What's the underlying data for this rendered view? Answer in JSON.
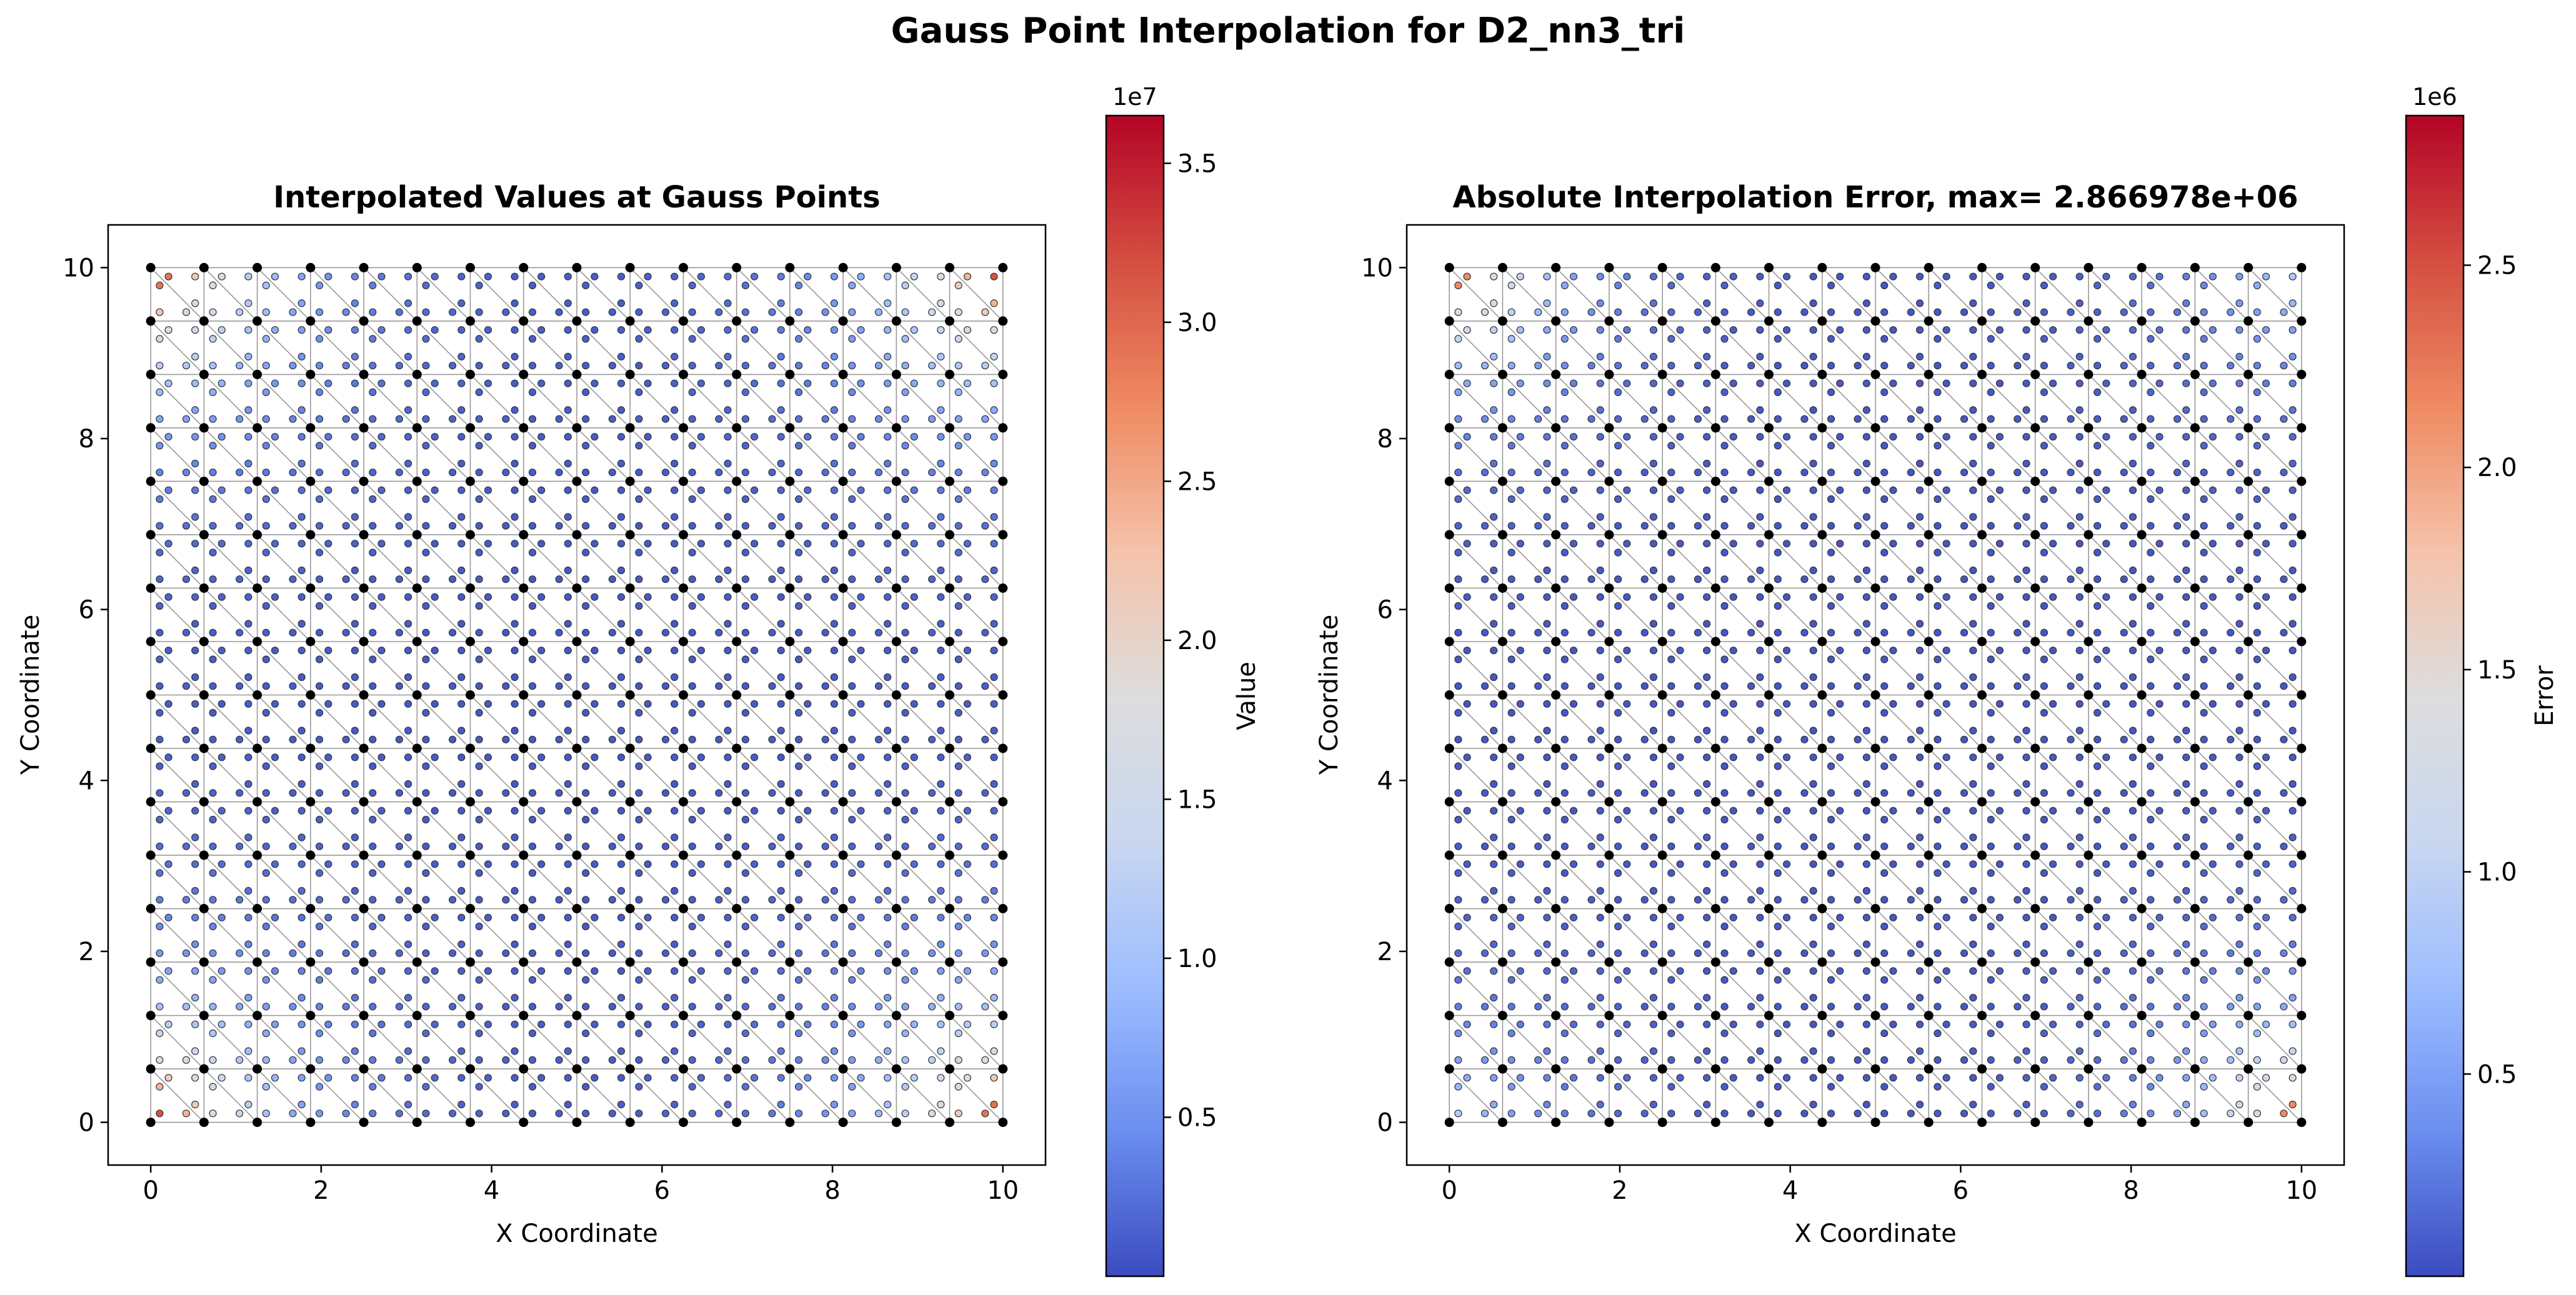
{
  "figure": {
    "suptitle": "Gauss Point Interpolation for D2_nn3_tri"
  },
  "colormap": {
    "name": "coolwarm",
    "stops": [
      "#3b4cc0",
      "#6b8ef0",
      "#9dbdff",
      "#c9d7f0",
      "#dddddd",
      "#f5c2aa",
      "#ef8a62",
      "#d44e41",
      "#b40426"
    ]
  },
  "chart_data": [
    {
      "type": "scatter",
      "title": "Interpolated Values at Gauss Points",
      "xlabel": "X Coordinate",
      "ylabel": "Y Coordinate",
      "xlim": [
        -0.5,
        10.5
      ],
      "ylim": [
        -0.5,
        10.5
      ],
      "xticks": [
        0,
        2,
        4,
        6,
        8,
        10
      ],
      "yticks": [
        0,
        2,
        4,
        6,
        8,
        10
      ],
      "mesh": {
        "divisions": 16,
        "extent": [
          0,
          10
        ],
        "element": "tri3"
      },
      "field": "corner_peak",
      "colorbar": {
        "label": "Value",
        "multiplier": "1e7",
        "range": [
          0.0,
          3.65
        ],
        "ticks": [
          0.5,
          1.0,
          1.5,
          2.0,
          2.5,
          3.0,
          3.5
        ],
        "tick_labels": [
          "0.5",
          "1.0",
          "1.5",
          "2.0",
          "2.5",
          "3.0",
          "3.5"
        ]
      }
    },
    {
      "type": "scatter",
      "title": "Absolute Interpolation Error, max= 2.866978e+06",
      "xlabel": "X Coordinate",
      "ylabel": "Y Coordinate",
      "xlim": [
        -0.5,
        10.5
      ],
      "ylim": [
        -0.5,
        10.5
      ],
      "xticks": [
        0,
        2,
        4,
        6,
        8,
        10
      ],
      "yticks": [
        0,
        2,
        4,
        6,
        8,
        10
      ],
      "mesh": {
        "divisions": 16,
        "extent": [
          0,
          10
        ],
        "element": "tri3"
      },
      "field": "corner_error",
      "colorbar": {
        "label": "Error",
        "multiplier": "1e6",
        "range": [
          0.0,
          2.87
        ],
        "ticks": [
          0.5,
          1.0,
          1.5,
          2.0,
          2.5
        ],
        "tick_labels": [
          "0.5",
          "1.0",
          "1.5",
          "2.0",
          "2.5"
        ]
      }
    }
  ]
}
